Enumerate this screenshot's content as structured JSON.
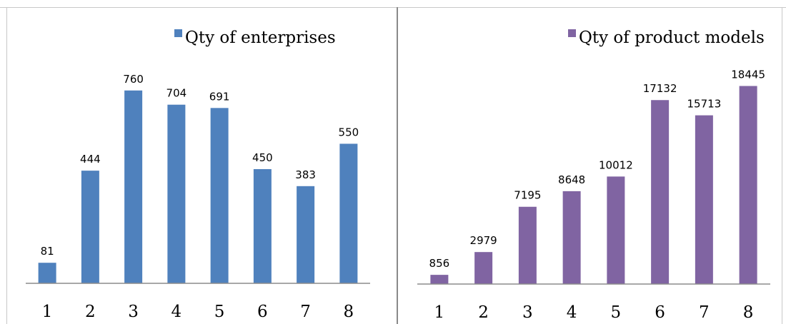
{
  "chart_data": [
    {
      "type": "bar",
      "categories": [
        "1",
        "2",
        "3",
        "4",
        "5",
        "6",
        "7",
        "8"
      ],
      "series": [
        {
          "name": "Qty of enterprises",
          "values": [
            81,
            444,
            760,
            704,
            691,
            450,
            383,
            550
          ],
          "color": "#4F81BD"
        }
      ],
      "ylim": [
        0,
        900
      ],
      "grid": false,
      "legend": "top-right"
    },
    {
      "type": "bar",
      "categories": [
        "1",
        "2",
        "3",
        "4",
        "5",
        "6",
        "7",
        "8"
      ],
      "series": [
        {
          "name": "Qty of product models",
          "values": [
            856,
            2979,
            7195,
            8648,
            10012,
            17132,
            15713,
            18445
          ],
          "color": "#8064A2"
        }
      ],
      "ylim": [
        0,
        22000
      ],
      "grid": false,
      "legend": "top-right"
    }
  ]
}
